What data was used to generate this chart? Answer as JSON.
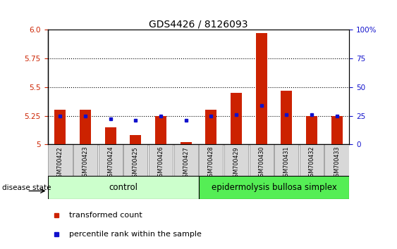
{
  "title": "GDS4426 / 8126093",
  "samples": [
    "GSM700422",
    "GSM700423",
    "GSM700424",
    "GSM700425",
    "GSM700426",
    "GSM700427",
    "GSM700428",
    "GSM700429",
    "GSM700430",
    "GSM700431",
    "GSM700432",
    "GSM700433"
  ],
  "red_values": [
    5.3,
    5.3,
    5.15,
    5.08,
    5.25,
    5.02,
    5.3,
    5.45,
    5.97,
    5.47,
    5.25,
    5.25
  ],
  "blue_values": [
    5.25,
    5.25,
    5.22,
    5.21,
    5.25,
    5.21,
    5.25,
    5.26,
    5.34,
    5.26,
    5.26,
    5.25
  ],
  "ymin": 5.0,
  "ymax": 6.0,
  "y2min": 0,
  "y2max": 100,
  "yticks": [
    5.0,
    5.25,
    5.5,
    5.75,
    6.0
  ],
  "y2ticks": [
    0,
    25,
    50,
    75,
    100
  ],
  "grid_lines": [
    5.25,
    5.5,
    5.75
  ],
  "bar_color": "#cc2200",
  "blue_color": "#1111cc",
  "control_label": "control",
  "disease_label": "epidermolysis bullosa simplex",
  "control_bg": "#ccffcc",
  "disease_bg": "#55ee55",
  "sample_box_bg": "#d8d8d8",
  "legend_red": "transformed count",
  "legend_blue": "percentile rank within the sample",
  "disease_state_label": "disease state"
}
